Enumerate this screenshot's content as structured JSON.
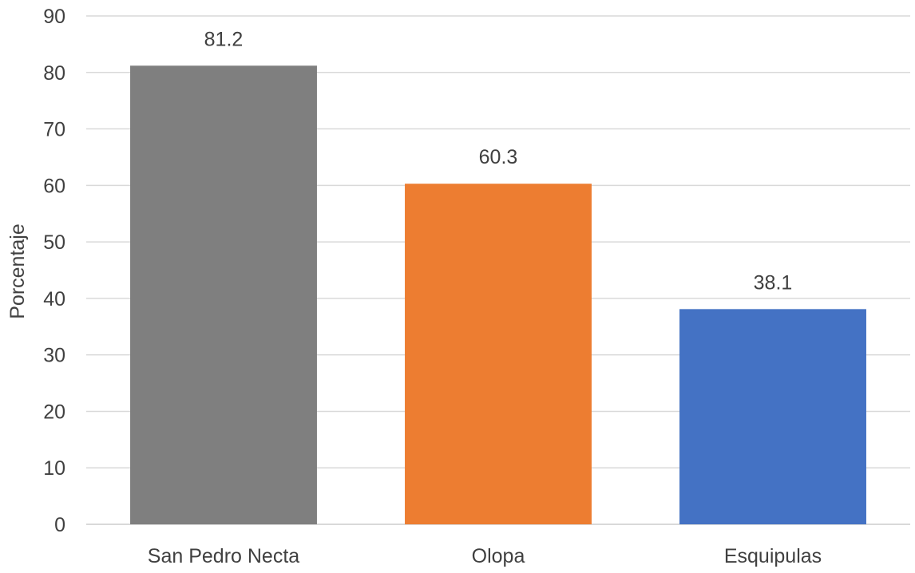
{
  "chart_data": {
    "type": "bar",
    "title": "",
    "xlabel": "",
    "ylabel": "Porcentaje",
    "ylim": [
      0,
      90
    ],
    "ytick_step": 10,
    "grid": true,
    "legend": "none",
    "categories": [
      "San Pedro Necta",
      "Olopa",
      "Esquipulas"
    ],
    "values": [
      81.2,
      60.3,
      38.1
    ],
    "data_labels": [
      "81.2",
      "60.3",
      "38.1"
    ],
    "bar_colors": [
      "#7f7f7f",
      "#ed7d31",
      "#4472c4"
    ],
    "gridline_color": "#d9d9d9"
  }
}
